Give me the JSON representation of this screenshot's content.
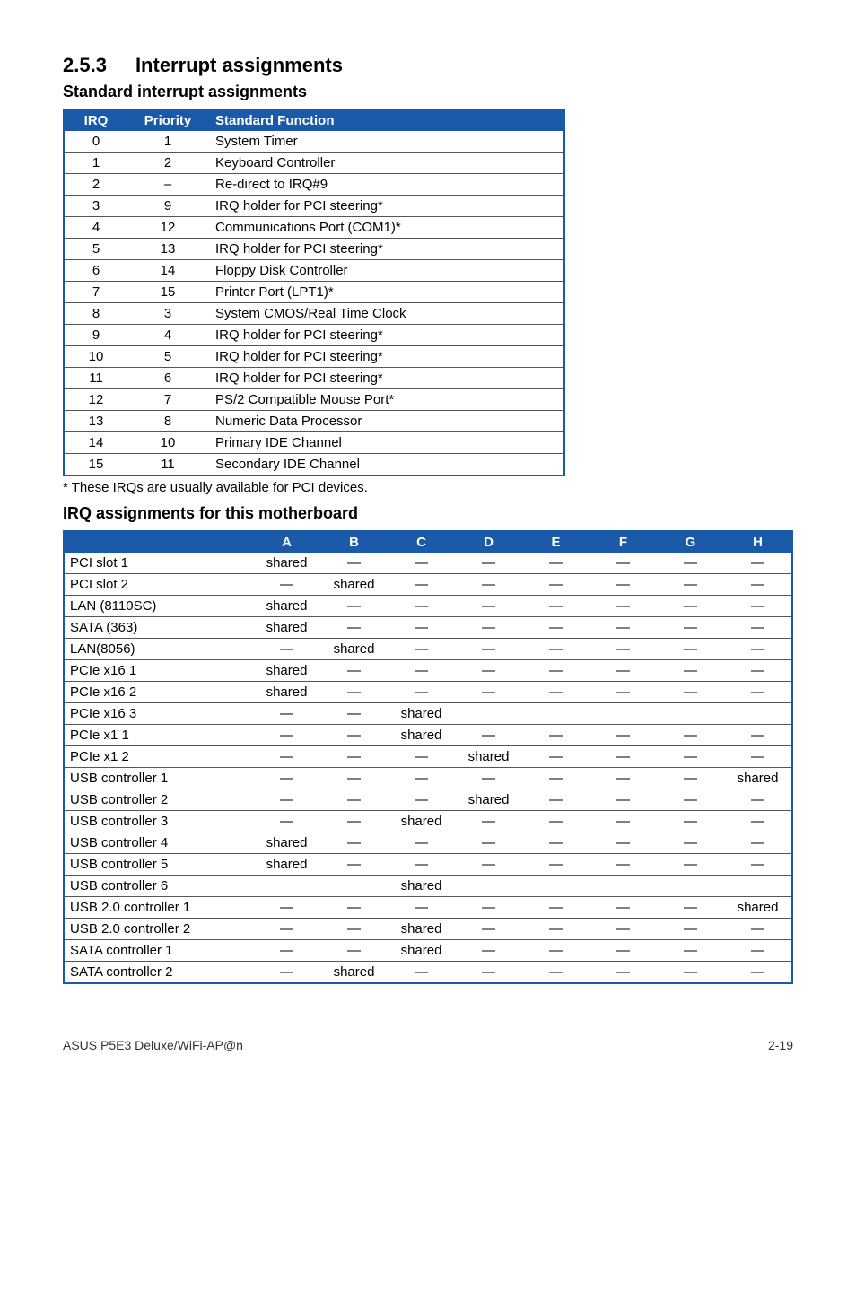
{
  "section": {
    "number": "2.5.3",
    "title": "Interrupt assignments"
  },
  "sub1": "Standard interrupt assignments",
  "tbl1": {
    "headers": {
      "irq": "IRQ",
      "priority": "Priority",
      "func": "Standard Function"
    },
    "rows": [
      {
        "irq": "0",
        "pri": "1",
        "func": "System Timer"
      },
      {
        "irq": "1",
        "pri": "2",
        "func": "Keyboard Controller"
      },
      {
        "irq": "2",
        "pri": "–",
        "func": "Re-direct to IRQ#9"
      },
      {
        "irq": "3",
        "pri": "9",
        "func": "IRQ holder for PCI steering*"
      },
      {
        "irq": "4",
        "pri": "12",
        "func": "Communications Port (COM1)*"
      },
      {
        "irq": "5",
        "pri": "13",
        "func": "IRQ holder for PCI steering*"
      },
      {
        "irq": "6",
        "pri": "14",
        "func": "Floppy Disk Controller"
      },
      {
        "irq": "7",
        "pri": "15",
        "func": "Printer Port (LPT1)*"
      },
      {
        "irq": "8",
        "pri": "3",
        "func": "System CMOS/Real Time Clock"
      },
      {
        "irq": "9",
        "pri": "4",
        "func": "IRQ holder for PCI steering*"
      },
      {
        "irq": "10",
        "pri": "5",
        "func": "IRQ holder for PCI steering*"
      },
      {
        "irq": "11",
        "pri": "6",
        "func": "IRQ holder for PCI steering*"
      },
      {
        "irq": "12",
        "pri": "7",
        "func": "PS/2 Compatible Mouse Port*"
      },
      {
        "irq": "13",
        "pri": "8",
        "func": "Numeric Data Processor"
      },
      {
        "irq": "14",
        "pri": "10",
        "func": "Primary IDE Channel"
      },
      {
        "irq": "15",
        "pri": "11",
        "func": "Secondary IDE Channel"
      }
    ]
  },
  "footnote": "* These IRQs are usually available for PCI devices.",
  "sub2": "IRQ assignments for this motherboard",
  "tbl2": {
    "headers": [
      "",
      "A",
      "B",
      "C",
      "D",
      "E",
      "F",
      "G",
      "H"
    ],
    "rows": [
      {
        "name": "PCI slot 1",
        "cells": [
          "shared",
          "—",
          "—",
          "—",
          "—",
          "—",
          "—",
          "—"
        ]
      },
      {
        "name": "PCI slot 2",
        "cells": [
          "—",
          "shared",
          "—",
          "—",
          "—",
          "—",
          "—",
          "—"
        ]
      },
      {
        "name": "LAN (8110SC)",
        "cells": [
          "shared",
          "—",
          "—",
          "—",
          "—",
          "—",
          "—",
          "—"
        ]
      },
      {
        "name": "SATA (363)",
        "cells": [
          "shared",
          "—",
          "—",
          "—",
          "—",
          "—",
          "—",
          "—"
        ]
      },
      {
        "name": "LAN(8056)",
        "cells": [
          "—",
          "shared",
          "—",
          "—",
          "—",
          "—",
          "—",
          "—"
        ]
      },
      {
        "name": "PCIe x16 1",
        "cells": [
          "shared",
          "—",
          "—",
          "—",
          "—",
          "—",
          "—",
          "—"
        ]
      },
      {
        "name": "PCIe x16 2",
        "cells": [
          "shared",
          "—",
          "—",
          "—",
          "—",
          "—",
          "—",
          "—"
        ]
      },
      {
        "name": "PCIe x16 3",
        "cells": [
          "—",
          "—",
          "shared",
          "",
          "",
          "",
          "",
          ""
        ]
      },
      {
        "name": "PCIe x1 1",
        "cells": [
          "—",
          "—",
          "shared",
          "—",
          "—",
          "—",
          "—",
          "—"
        ]
      },
      {
        "name": "PCIe x1 2",
        "cells": [
          "—",
          "—",
          "—",
          "shared",
          "—",
          "—",
          "—",
          "—"
        ]
      },
      {
        "name": "USB controller 1",
        "cells": [
          "—",
          "—",
          "—",
          "—",
          "—",
          "—",
          "—",
          "shared"
        ]
      },
      {
        "name": "USB controller 2",
        "cells": [
          "—",
          "—",
          "—",
          "shared",
          "—",
          "—",
          "—",
          "—"
        ]
      },
      {
        "name": "USB controller 3",
        "cells": [
          "—",
          "—",
          "shared",
          "—",
          "—",
          "—",
          "—",
          "—"
        ]
      },
      {
        "name": "USB controller 4",
        "cells": [
          "shared",
          "—",
          "—",
          "—",
          "—",
          "—",
          "—",
          "—"
        ]
      },
      {
        "name": "USB controller 5",
        "cells": [
          "shared",
          "—",
          "—",
          "—",
          "—",
          "—",
          "—",
          "—"
        ]
      },
      {
        "name": "USB controller 6",
        "cells": [
          "",
          "",
          "shared",
          "",
          "",
          "",
          "",
          ""
        ]
      },
      {
        "name": "USB 2.0 controller 1",
        "cells": [
          "—",
          "—",
          "—",
          "—",
          "—",
          "—",
          "—",
          "shared"
        ]
      },
      {
        "name": "USB 2.0 controller 2",
        "cells": [
          "—",
          "—",
          "shared",
          "—",
          "—",
          "—",
          "—",
          "—"
        ]
      },
      {
        "name": "SATA controller 1",
        "cells": [
          "—",
          "—",
          "shared",
          "—",
          "—",
          "—",
          "—",
          "—"
        ]
      },
      {
        "name": "SATA controller 2",
        "cells": [
          "—",
          "shared",
          "—",
          "—",
          "—",
          "—",
          "—",
          "—"
        ]
      }
    ]
  },
  "footer": {
    "left": "ASUS P5E3 Deluxe/WiFi-AP@n",
    "right": "2-19"
  }
}
